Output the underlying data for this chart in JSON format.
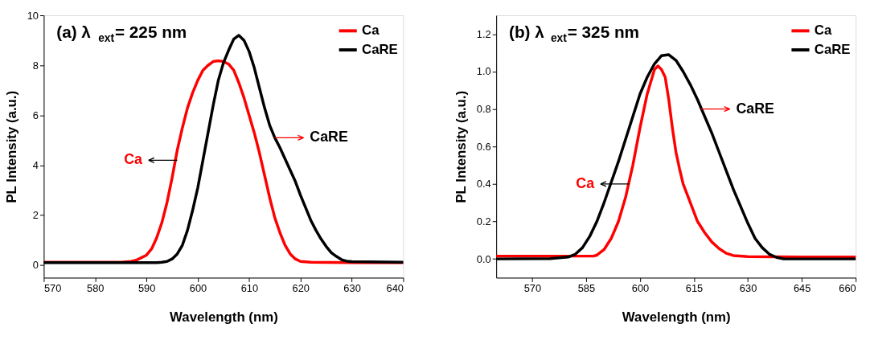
{
  "chart_data": [
    {
      "type": "line",
      "title": "(a) λ$_{ext}$= 225 nm",
      "xlabel": "Wavelength (nm)",
      "ylabel": "PL Intensity (a.u.)",
      "xlim": [
        570,
        640
      ],
      "xticks": [
        570,
        580,
        590,
        600,
        610,
        620,
        630,
        640
      ],
      "ylim": [
        -0.5,
        10
      ],
      "yticks": [
        0,
        2,
        4,
        6,
        8,
        10
      ],
      "grid": false,
      "legend": "top right",
      "series": [
        {
          "name": "Ca",
          "color": "#ff0000",
          "x": [
            570,
            580,
            585,
            587,
            588,
            589,
            590,
            591,
            592,
            593,
            594,
            595,
            596,
            597,
            598,
            599,
            600,
            601,
            602,
            603,
            604,
            605,
            606,
            607,
            608,
            609,
            610,
            611,
            612,
            613,
            614,
            615,
            616,
            617,
            618,
            619,
            620,
            622,
            630,
            640
          ],
          "values": [
            0.12,
            0.12,
            0.12,
            0.15,
            0.2,
            0.3,
            0.4,
            0.65,
            1.1,
            1.7,
            2.5,
            3.5,
            4.6,
            5.5,
            6.3,
            6.9,
            7.4,
            7.8,
            8.0,
            8.15,
            8.18,
            8.15,
            8.05,
            7.8,
            7.3,
            6.7,
            6.0,
            5.3,
            4.5,
            3.6,
            2.7,
            1.9,
            1.3,
            0.8,
            0.45,
            0.25,
            0.15,
            0.12,
            0.1,
            0.1
          ]
        },
        {
          "name": "CaRE",
          "color": "#000000",
          "x": [
            570,
            580,
            592,
            593,
            594,
            595,
            596,
            597,
            598,
            599,
            600,
            601,
            602,
            603,
            604,
            605,
            606,
            607,
            608,
            609,
            610,
            611,
            612,
            613,
            614,
            615,
            616,
            617,
            618,
            619,
            620,
            621,
            622,
            623,
            624,
            625,
            626,
            627,
            628,
            629,
            630,
            640
          ],
          "values": [
            0.1,
            0.1,
            0.1,
            0.12,
            0.15,
            0.25,
            0.45,
            0.8,
            1.4,
            2.2,
            3.1,
            4.2,
            5.3,
            6.4,
            7.4,
            8.1,
            8.6,
            9.05,
            9.2,
            9.0,
            8.55,
            7.9,
            7.1,
            6.3,
            5.6,
            5.1,
            4.7,
            4.25,
            3.8,
            3.35,
            2.8,
            2.3,
            1.8,
            1.4,
            1.05,
            0.75,
            0.5,
            0.35,
            0.22,
            0.16,
            0.14,
            0.12
          ]
        }
      ],
      "annotations": [
        {
          "text": "Ca",
          "x": 596,
          "y": 4.2
        },
        {
          "text": "CaRE",
          "x": 615,
          "y": 5.1
        }
      ]
    },
    {
      "type": "line",
      "title": "(b) λ$_{ext}$= 325 nm",
      "xlabel": "Wavelength (nm)",
      "ylabel": "PL Intensity (a.u.)",
      "xlim": [
        560,
        660
      ],
      "xticks": [
        570,
        585,
        600,
        615,
        630,
        645,
        660
      ],
      "ylim": [
        -0.1,
        1.3
      ],
      "yticks": [
        {
          "value": 0,
          "label": "0.0"
        },
        0.2,
        0.4,
        0.6,
        0.8,
        {
          "value": 1,
          "label": "1.0"
        },
        1.2
      ],
      "grid": false,
      "legend": "top right",
      "series": [
        {
          "name": "Ca",
          "color": "#ff0000",
          "x": [
            560,
            575,
            587,
            588,
            590,
            592,
            594,
            596,
            598,
            600,
            602,
            604,
            605,
            606,
            607,
            608,
            609,
            610,
            611,
            612,
            614,
            616,
            618,
            620,
            622,
            624,
            626,
            630,
            645,
            660
          ],
          "values": [
            0.015,
            0.015,
            0.015,
            0.02,
            0.05,
            0.11,
            0.2,
            0.33,
            0.5,
            0.7,
            0.88,
            1.01,
            1.03,
            1.01,
            0.97,
            0.85,
            0.7,
            0.57,
            0.48,
            0.4,
            0.3,
            0.2,
            0.14,
            0.09,
            0.055,
            0.03,
            0.018,
            0.012,
            0.01,
            0.01
          ]
        },
        {
          "name": "CaRE",
          "color": "#000000",
          "x": [
            560,
            575,
            580,
            582,
            584,
            586,
            588,
            590,
            592,
            594,
            596,
            598,
            600,
            602,
            604,
            606,
            608,
            610,
            612,
            614,
            616,
            618,
            620,
            622,
            624,
            626,
            628,
            630,
            632,
            634,
            636,
            638,
            640,
            660
          ],
          "values": [
            0.0,
            0.002,
            0.01,
            0.025,
            0.06,
            0.12,
            0.2,
            0.3,
            0.41,
            0.52,
            0.64,
            0.76,
            0.88,
            0.97,
            1.04,
            1.085,
            1.09,
            1.06,
            1.0,
            0.93,
            0.85,
            0.76,
            0.67,
            0.57,
            0.47,
            0.37,
            0.28,
            0.19,
            0.11,
            0.06,
            0.025,
            0.008,
            0.0,
            0.0
          ]
        }
      ],
      "annotations": [
        {
          "text": "Ca",
          "x": 597,
          "y": 0.4
        },
        {
          "text": "CaRE",
          "x": 617,
          "y": 0.8
        }
      ]
    }
  ]
}
